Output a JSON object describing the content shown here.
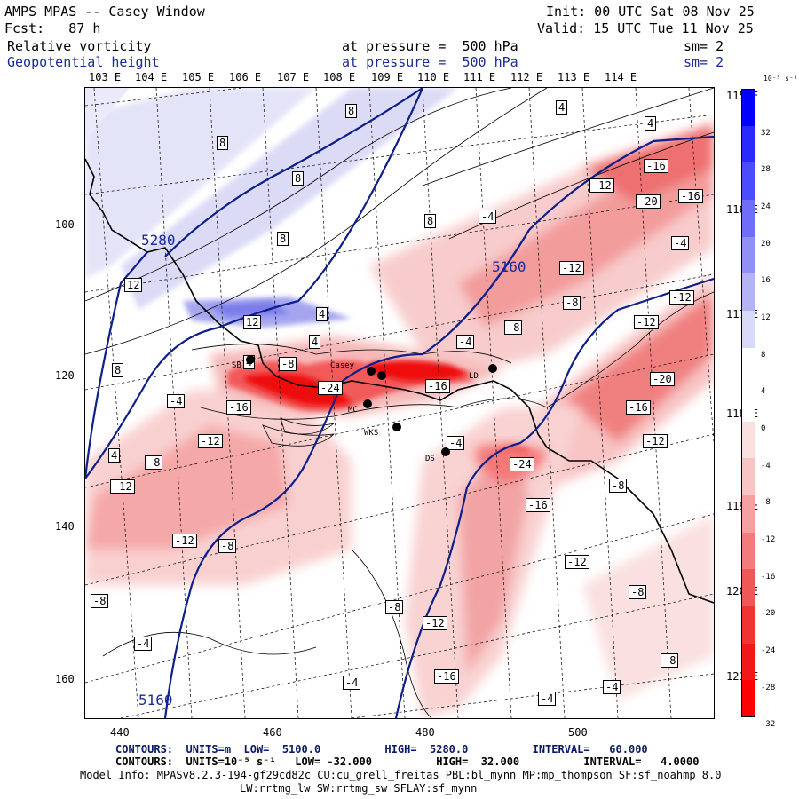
{
  "header": {
    "title": "AMPS MPAS -- Casey Window",
    "init": "Init: 00 UTC Sat 08 Nov 25",
    "fcst": "Fcst:   87 h",
    "valid": "Valid: 15 UTC Tue 11 Nov 25",
    "var1": "Relative vorticity",
    "var1_level": "at pressure =  500 hPa",
    "var1_sm": "sm= 2",
    "var2": "Geopotential height",
    "var2_level": "at pressure =  500 hPa",
    "var2_sm": "sm= 2"
  },
  "axes": {
    "top_lon": [
      "103 E",
      "104 E",
      "105 E",
      "106 E",
      "107 E",
      "108 E",
      "109 E",
      "110 E",
      "111 E",
      "112 E",
      "113 E",
      "114 E"
    ],
    "right_lon": [
      "115 E",
      "116 E",
      "117 E",
      "118 E",
      "119 E",
      "120 E",
      "121 E"
    ],
    "left_y": [
      "100",
      "120",
      "140",
      "160"
    ],
    "bottom_x": [
      "440",
      "460",
      "480",
      "500"
    ]
  },
  "height_labels": [
    "5280",
    "5160",
    "5160"
  ],
  "contour_labels": [
    "8",
    "8",
    "8",
    "8",
    "8",
    "8",
    "4",
    "4",
    "4",
    "4",
    "4",
    "4",
    "12",
    "12",
    "8",
    "-4",
    "-4",
    "-4",
    "-4",
    "-4",
    "-4",
    "-4",
    "-4",
    "-4",
    "-8",
    "-8",
    "-8",
    "-8",
    "-8",
    "-8",
    "-8",
    "-8",
    "-8",
    "-8",
    "-12",
    "-12",
    "-12",
    "-12",
    "-12",
    "-12",
    "-12",
    "-12",
    "-12",
    "-12",
    "-16",
    "-16",
    "-16",
    "-16",
    "-16",
    "-16",
    "-16",
    "-20",
    "-20",
    "-24",
    "-24"
  ],
  "stations": [
    "SB",
    "Casey",
    "LD",
    "MC",
    "WKS",
    "DS"
  ],
  "colorbar": {
    "units": "10⁻⁵ s⁻¹",
    "ticks": [
      "32",
      "28",
      "24",
      "20",
      "16",
      "12",
      "8",
      "4",
      "0",
      "-4",
      "-8",
      "-12",
      "-16",
      "-20",
      "-24",
      "-28",
      "-32"
    ],
    "colors": [
      "#0000ff",
      "#2a2aff",
      "#4c4cff",
      "#6e6efa",
      "#9090f5",
      "#b4b4f5",
      "#d8d8f8",
      "#ffffff",
      "#ffffff",
      "#fbe0e0",
      "#f8c4c4",
      "#f5a0a0",
      "#f27c7c",
      "#f05858",
      "#f03434",
      "#f01818",
      "#ff0000"
    ]
  },
  "footer": {
    "line1": "CONTOURS:  UNITS=m  LOW=  5100.0          HIGH=  5280.0          INTERVAL=   60.000",
    "line2": "CONTOURS:  UNITS=10⁻⁵ s⁻¹   LOW= -32.000          HIGH=  32.000          INTERVAL=   4.0000",
    "line3": "Model Info: MPASv8.2.3-194-gf29cd82c CU:cu_grell_freitas PBL:bl_mynn MP:mp_thompson SF:sf_noahmp 8.0",
    "line4": "LW:rrtmg_lw SW:rrtmg_sw SFLAY:sf_mynn"
  }
}
